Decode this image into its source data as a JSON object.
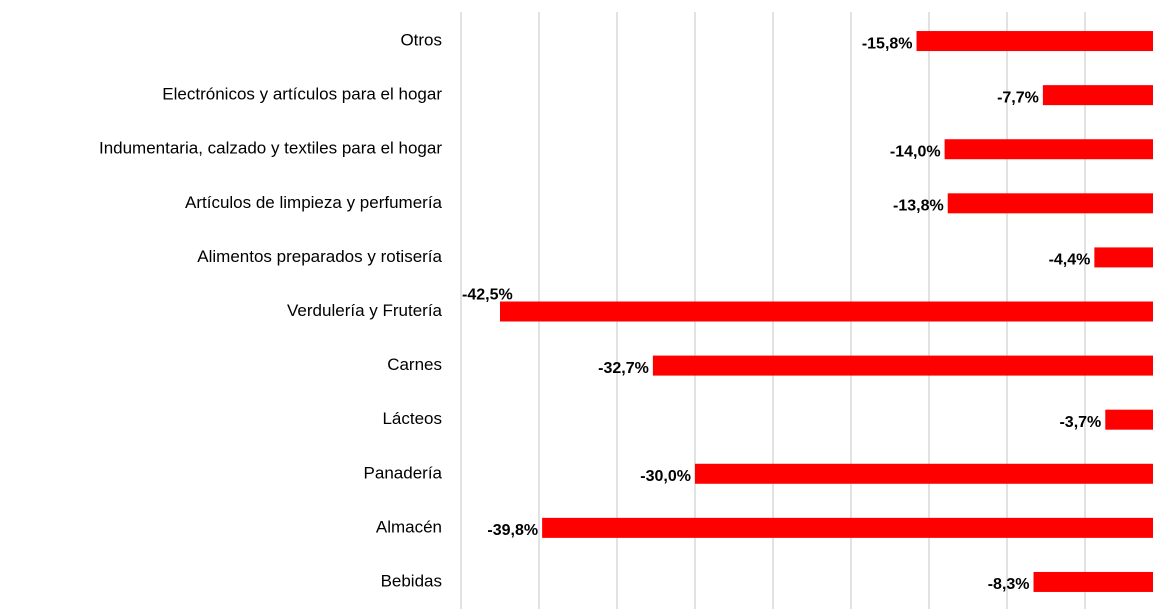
{
  "chart_data": {
    "type": "barh",
    "categories": [
      "Otros",
      "Electrónicos y artículos para el hogar",
      "Indumentaria, calzado y textiles para el hogar",
      "Artículos de limpieza y perfumería",
      "Alimentos preparados y rotisería",
      "Verdulería y Frutería",
      "Carnes",
      "Lácteos",
      "Panadería",
      "Almacén",
      "Bebidas"
    ],
    "values": [
      -15.8,
      -7.7,
      -14.0,
      -13.8,
      -4.4,
      -42.5,
      -32.7,
      -3.7,
      -30.0,
      -39.8,
      -8.3
    ],
    "value_labels": [
      "-15,8%",
      "-7,7%",
      "-14,0%",
      "-13,8%",
      "-4,4%",
      "-42,5%",
      "-32,7%",
      "-3,7%",
      "-30,0%",
      "-39,8%",
      "-8,3%"
    ],
    "color": "#ff0000",
    "xlim": [
      -45,
      0
    ],
    "xticks": [
      -45,
      -40,
      -35,
      -30,
      -25,
      -20,
      -15,
      -10,
      -5
    ],
    "grid": true
  }
}
